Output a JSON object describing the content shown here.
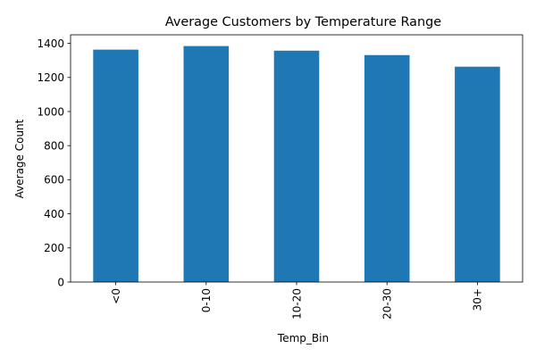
{
  "chart_data": {
    "type": "bar",
    "title": "Average Customers by Temperature Range",
    "xlabel": "Temp_Bin",
    "ylabel": "Average Count",
    "categories": [
      "<0",
      "0-10",
      "10-20",
      "20-30",
      "30+"
    ],
    "values": [
      1363,
      1384,
      1357,
      1331,
      1263
    ],
    "ylim": [
      0,
      1450
    ],
    "yticks": [
      0,
      200,
      400,
      600,
      800,
      1000,
      1200,
      1400
    ],
    "x_tick_rotation": "vertical",
    "bar_color": "#1f77b4",
    "grid": false,
    "legend": "none"
  }
}
